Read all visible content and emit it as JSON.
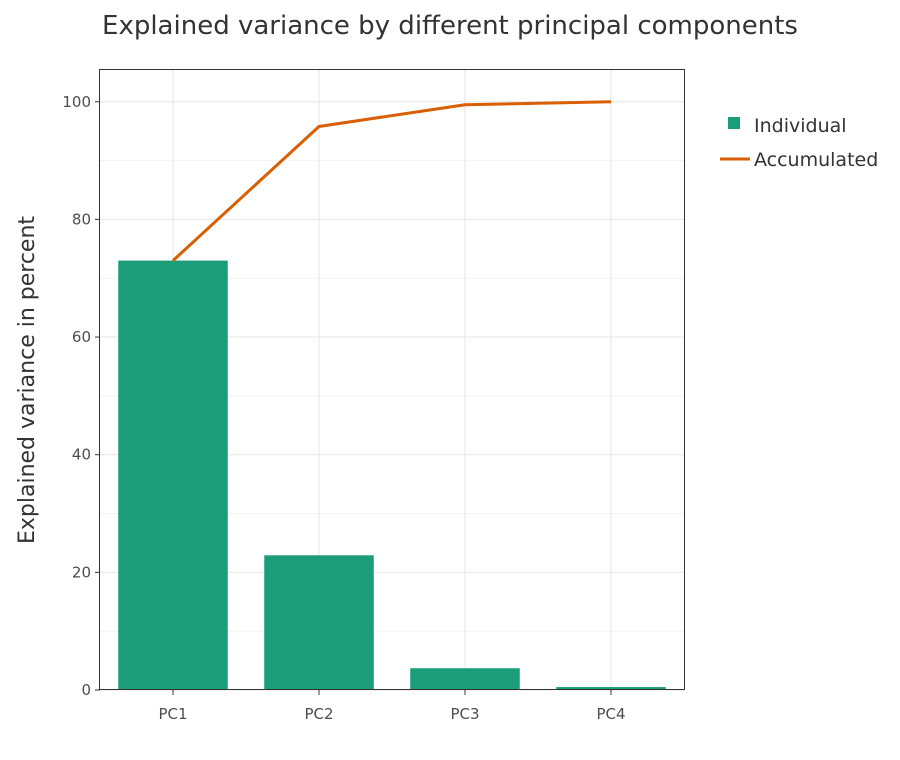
{
  "chart_data": {
    "type": "bar",
    "title": "Explained variance by different principal components",
    "xlabel": "",
    "ylabel": "Explained variance in percent",
    "categories": [
      "PC1",
      "PC2",
      "PC3",
      "PC4"
    ],
    "ylim": [
      0,
      105.4
    ],
    "yticks": [
      0,
      20,
      40,
      60,
      80,
      100
    ],
    "grid": true,
    "legend_position": "right",
    "series": [
      {
        "name": "Individual",
        "kind": "bar",
        "color": "#1b9e77",
        "values": [
          73.0,
          22.9,
          3.7,
          0.5
        ]
      },
      {
        "name": "Accumulated",
        "kind": "line",
        "color": "#d95f02",
        "values": [
          73.0,
          95.8,
          99.5,
          100.0
        ]
      }
    ]
  }
}
